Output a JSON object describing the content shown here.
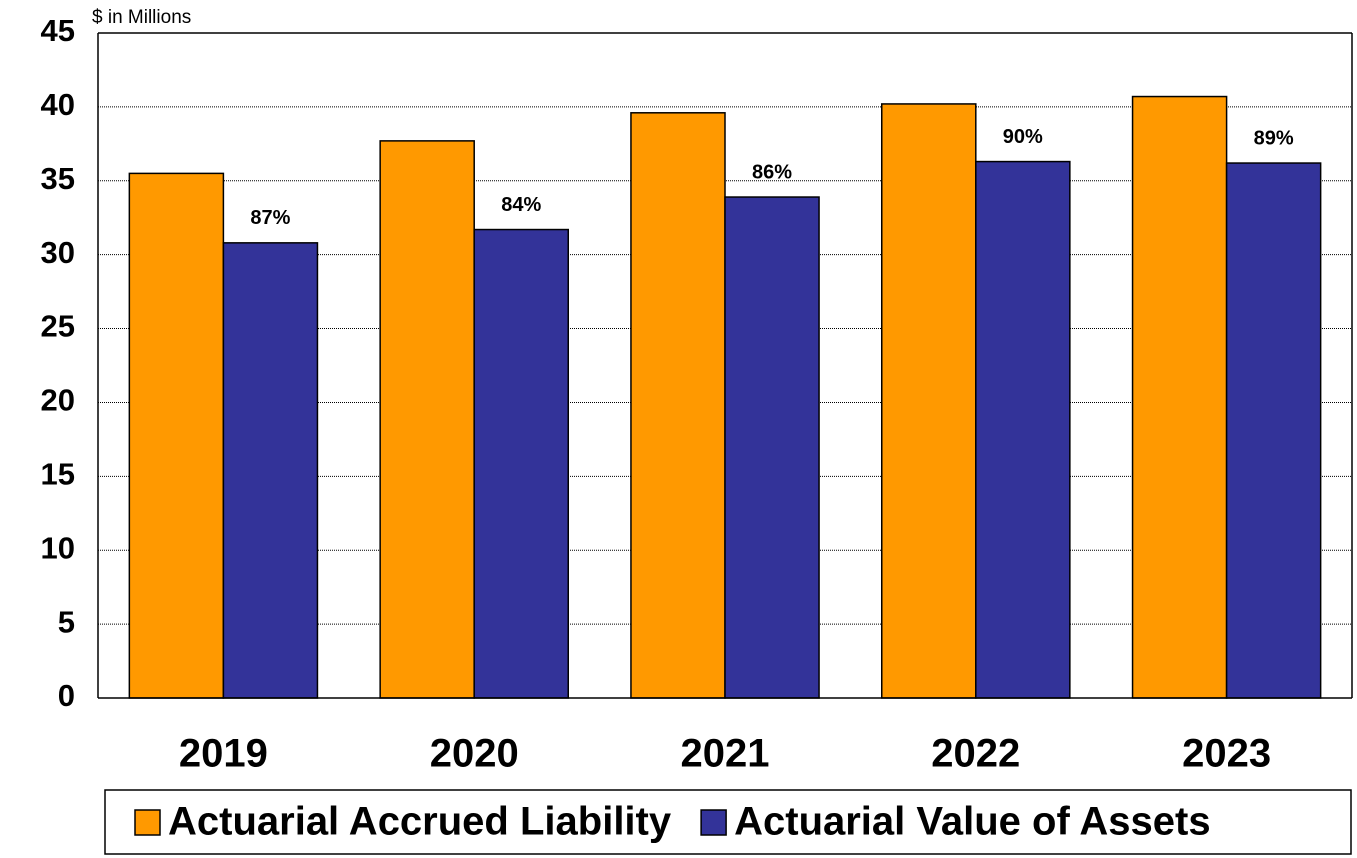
{
  "chart_data": {
    "type": "bar",
    "y_axis_label": "$ in Millions",
    "categories": [
      "2019",
      "2020",
      "2021",
      "2022",
      "2023"
    ],
    "series": [
      {
        "name": "Actuarial Accrued Liability",
        "color": "#ff9900",
        "values": [
          35.5,
          37.7,
          39.6,
          40.2,
          40.7
        ]
      },
      {
        "name": "Actuarial Value of Assets",
        "color": "#333399",
        "values": [
          30.8,
          31.7,
          33.9,
          36.3,
          36.2
        ]
      }
    ],
    "annotations": [
      "87%",
      "84%",
      "86%",
      "90%",
      "89%"
    ],
    "ylim": [
      0,
      45
    ],
    "yticks": [
      0,
      5,
      10,
      15,
      20,
      25,
      30,
      35,
      40,
      45
    ],
    "grid": true
  }
}
